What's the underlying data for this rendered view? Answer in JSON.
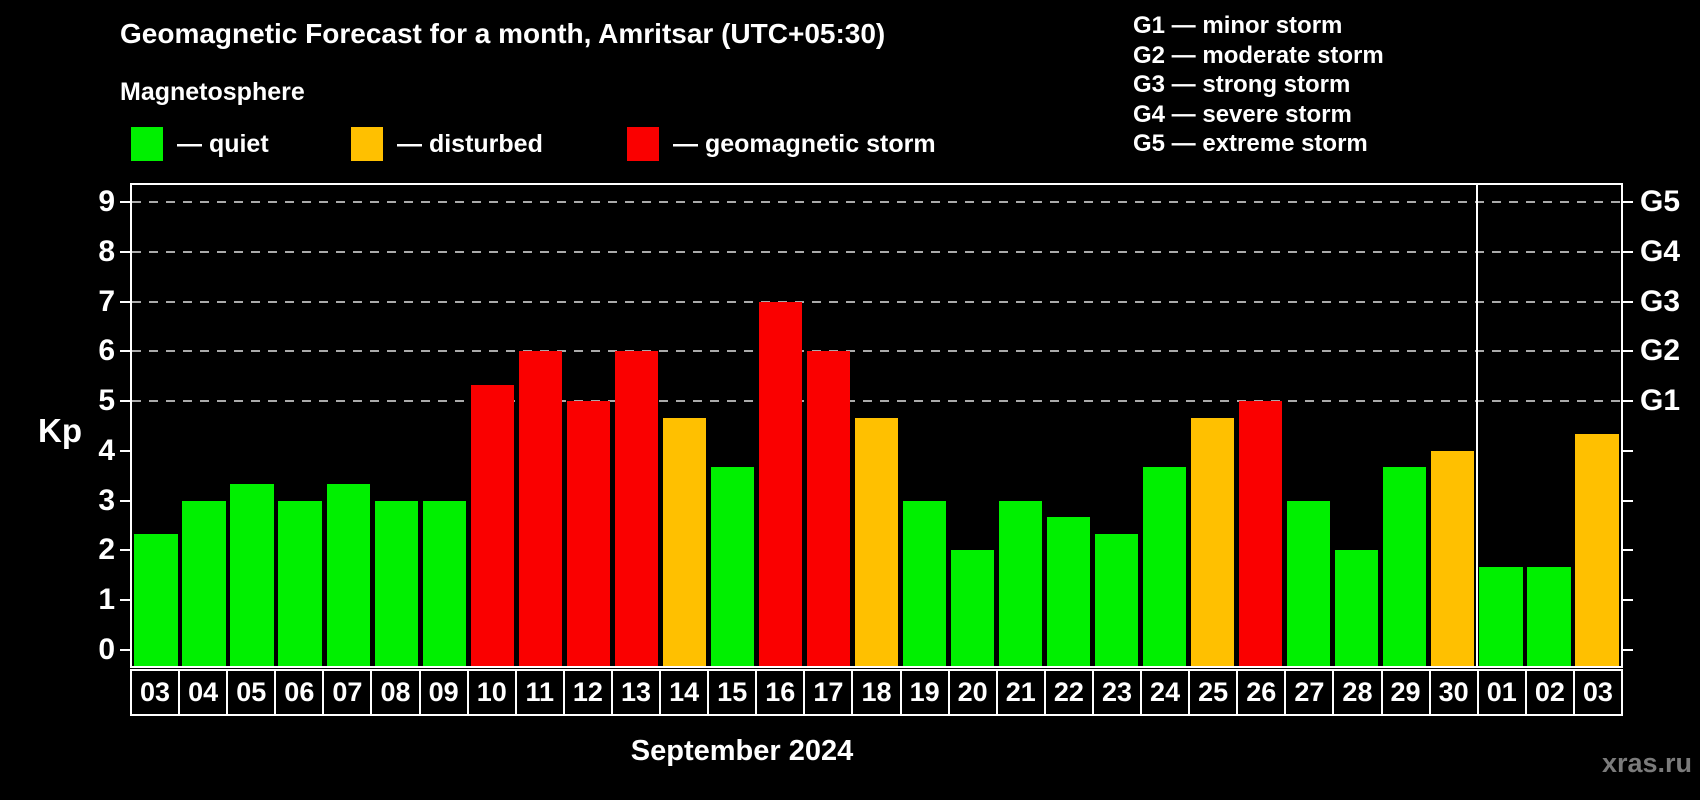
{
  "title": "Geomagnetic Forecast for a month, Amritsar (UTC+05:30)",
  "subtitle": "Magnetosphere",
  "legend": {
    "quiet": "— quiet",
    "disturbed": "— disturbed",
    "storm": "— geomagnetic storm"
  },
  "g_legend": [
    "G1 — minor storm",
    "G2 — moderate storm",
    "G3 — strong storm",
    "G4 — severe storm",
    "G5 — extreme storm"
  ],
  "colors": {
    "quiet": "#00f000",
    "disturbed": "#ffc000",
    "storm": "#fa0000",
    "grid": "#aaaaaa",
    "frame": "#ffffff",
    "background": "#000000",
    "watermark_color": "#7b7b7b"
  },
  "y_axis": {
    "label": "Kp",
    "ticks": [
      0,
      1,
      2,
      3,
      4,
      5,
      6,
      7,
      8,
      9
    ]
  },
  "right_axis": {
    "ticks": [
      0,
      1,
      2,
      3,
      4,
      5,
      6,
      7,
      8,
      9
    ],
    "labels": [
      {
        "value": 5,
        "label": "G1"
      },
      {
        "value": 6,
        "label": "G2"
      },
      {
        "value": 7,
        "label": "G3"
      },
      {
        "value": 8,
        "label": "G4"
      },
      {
        "value": 9,
        "label": "G5"
      }
    ]
  },
  "month_label": "September 2024",
  "watermark": "xras.ru",
  "chart_data": {
    "type": "bar",
    "title": "Geomagnetic Forecast for a month, Amritsar (UTC+05:30)",
    "ylabel": "Kp",
    "ylim": [
      0,
      9.4
    ],
    "grid_values": [
      5,
      6,
      7,
      8,
      9
    ],
    "legend_position": "top-left",
    "categories": [
      "03",
      "04",
      "05",
      "06",
      "07",
      "08",
      "09",
      "10",
      "11",
      "12",
      "13",
      "14",
      "15",
      "16",
      "17",
      "18",
      "19",
      "20",
      "21",
      "22",
      "23",
      "24",
      "25",
      "26",
      "27",
      "28",
      "29",
      "30",
      "01",
      "02",
      "03"
    ],
    "values": [
      2.33,
      3,
      3.33,
      3,
      3.33,
      3,
      3,
      5.33,
      6,
      5,
      6,
      4.67,
      3.67,
      7,
      6,
      4.67,
      3,
      2,
      3,
      2.67,
      2.33,
      3.67,
      4.67,
      5,
      3,
      2,
      3.67,
      4,
      1.67,
      1.67,
      4.33
    ],
    "statuses": [
      "quiet",
      "quiet",
      "quiet",
      "quiet",
      "quiet",
      "quiet",
      "quiet",
      "storm",
      "storm",
      "storm",
      "storm",
      "disturbed",
      "quiet",
      "storm",
      "storm",
      "disturbed",
      "quiet",
      "quiet",
      "quiet",
      "quiet",
      "quiet",
      "quiet",
      "disturbed",
      "storm",
      "quiet",
      "quiet",
      "quiet",
      "disturbed",
      "quiet",
      "quiet",
      "disturbed"
    ],
    "month_separator_after_index": 28
  }
}
